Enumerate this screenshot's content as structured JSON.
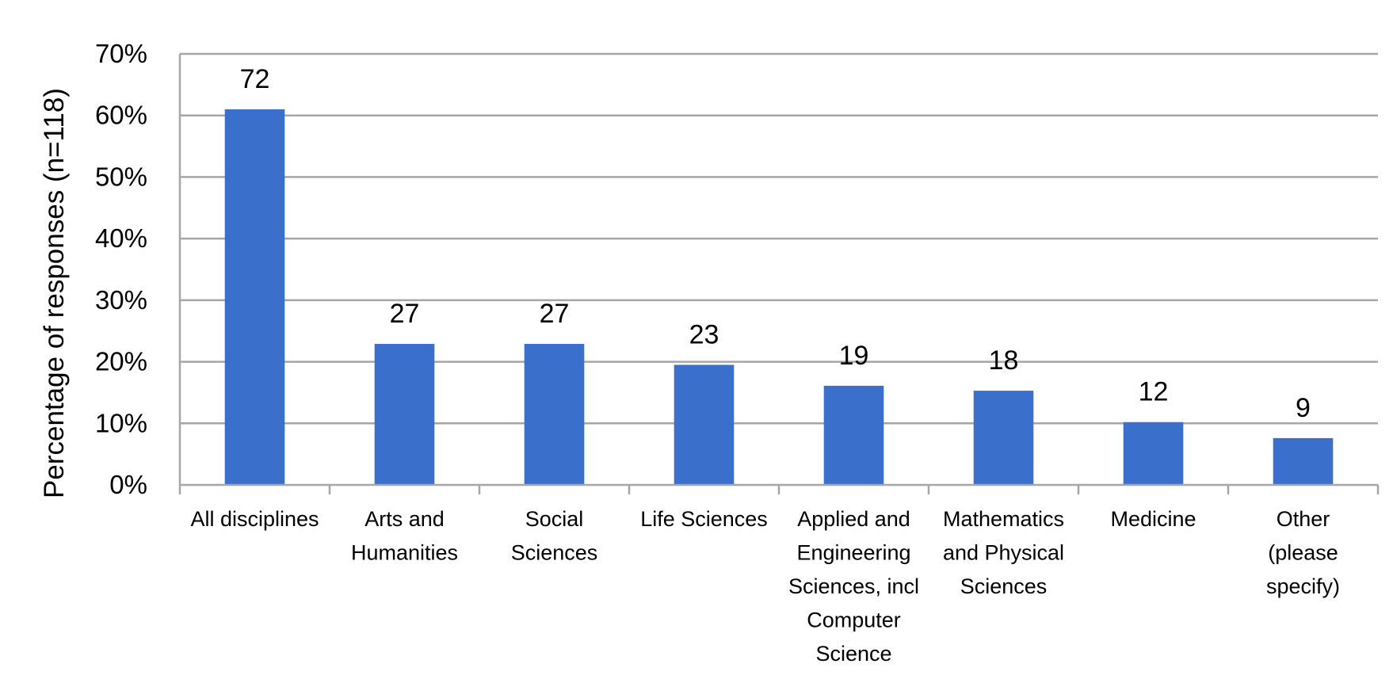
{
  "chart_data": {
    "type": "bar",
    "categories": [
      [
        "All disciplines"
      ],
      [
        "Arts and",
        "Humanities"
      ],
      [
        "Social",
        "Sciences"
      ],
      [
        "Life Sciences"
      ],
      [
        "Applied and",
        "Engineering",
        "Sciences, incl",
        "Computer",
        "Science"
      ],
      [
        "Mathematics",
        "and Physical",
        "Sciences"
      ],
      [
        "Medicine"
      ],
      [
        "Other",
        "(please",
        "specify)"
      ]
    ],
    "values": [
      61.0,
      22.9,
      22.9,
      19.5,
      16.1,
      15.3,
      10.2,
      7.6
    ],
    "data_labels": [
      "72",
      "27",
      "27",
      "23",
      "19",
      "18",
      "12",
      "9"
    ],
    "title": "",
    "xlabel": "",
    "ylabel": "Percentage of responses (n=118)",
    "ylim": [
      0,
      70
    ],
    "yticks": [
      "0%",
      "10%",
      "20%",
      "30%",
      "40%",
      "50%",
      "60%",
      "70%"
    ],
    "grid": true,
    "legend": "none",
    "bar_color": "#3b6fcc",
    "grid_color": "#a6a6a6"
  }
}
